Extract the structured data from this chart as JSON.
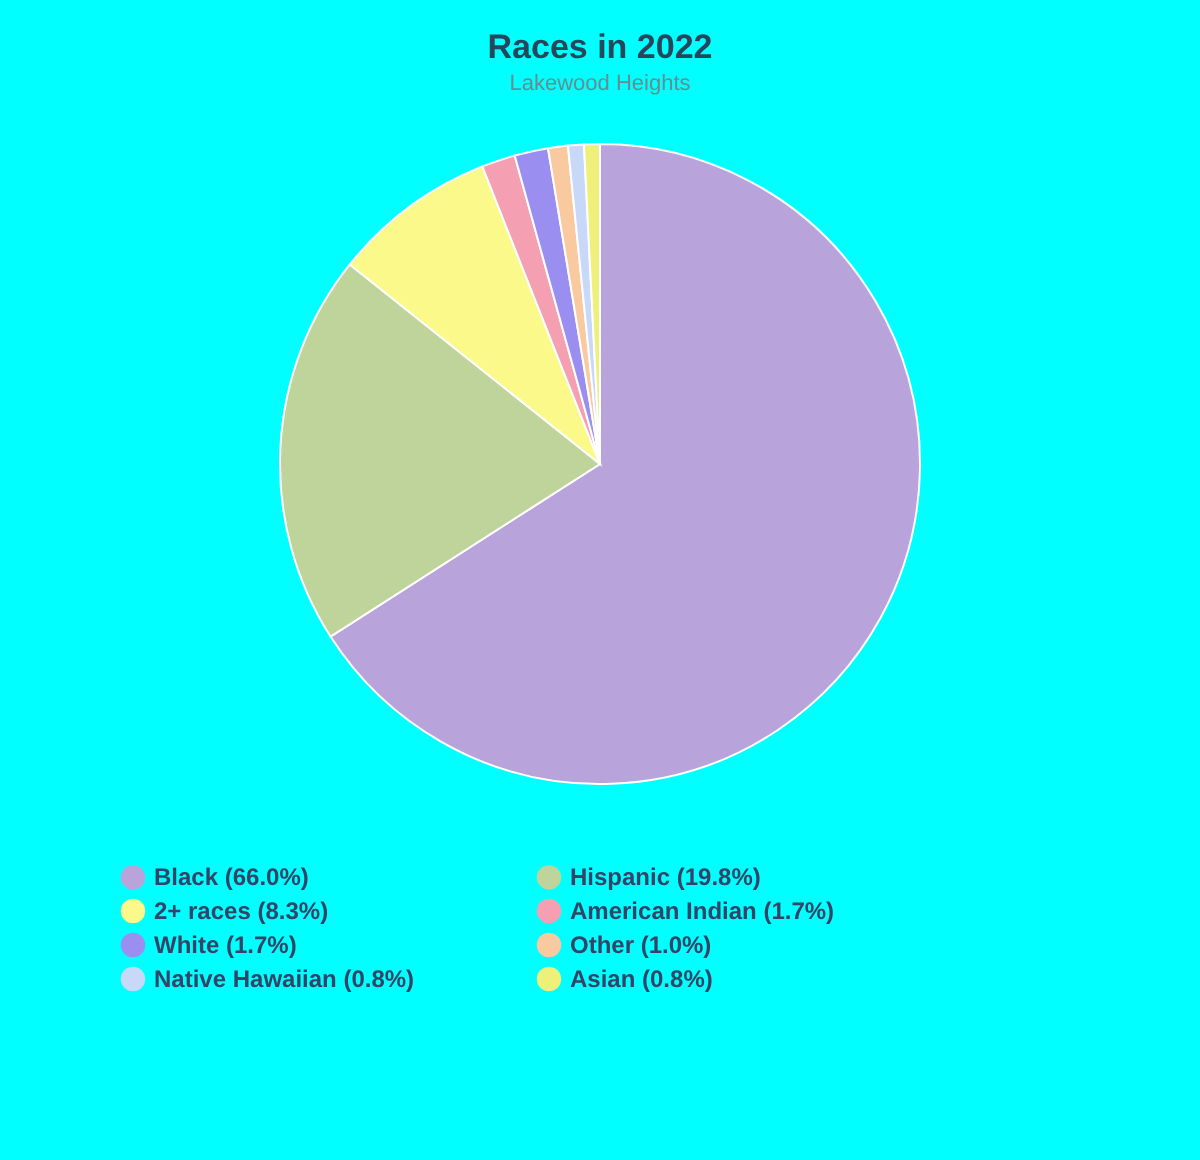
{
  "chart_data": {
    "type": "pie",
    "title": "Races in 2022",
    "subtitle": "Lakewood Heights",
    "categories": [
      "Black (66.0%)",
      "Hispanic (19.8%)",
      "2+ races (8.3%)",
      "American Indian (1.7%)",
      "White (1.7%)",
      "Other (1.0%)",
      "Native Hawaiian (0.8%)",
      "Asian (0.8%)"
    ],
    "values": [
      66.0,
      19.8,
      8.3,
      1.7,
      1.7,
      1.0,
      0.8,
      0.8
    ],
    "colors": [
      "#b9a3db",
      "#bfd49a",
      "#fbf98a",
      "#f4a0b2",
      "#9a8ef0",
      "#f9c9a0",
      "#c8d8f8",
      "#eef07a"
    ],
    "legend": "bottom"
  }
}
